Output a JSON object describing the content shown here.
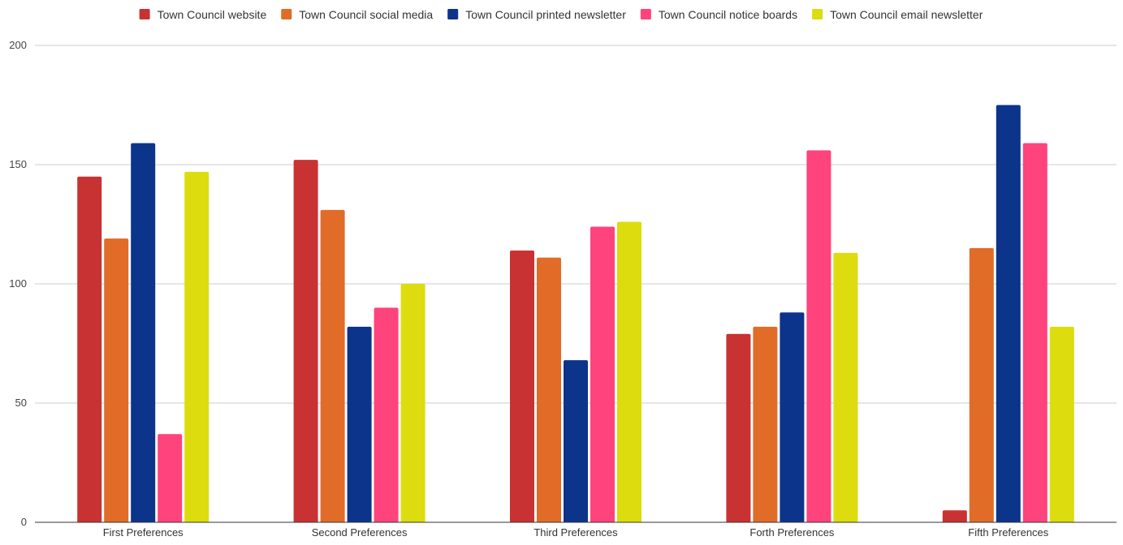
{
  "chart_data": {
    "type": "bar",
    "title": "",
    "xlabel": "",
    "ylabel": "",
    "categories": [
      "First Preferences",
      "Second Preferences",
      "Third Preferences",
      "Forth Preferences",
      "Fifth Preferences"
    ],
    "ylim": [
      0,
      200
    ],
    "yticks": [
      0,
      50,
      100,
      150,
      200
    ],
    "grid": true,
    "legend_position": "top-center",
    "series": [
      {
        "name": "Town Council website",
        "color": "#C83232",
        "values": [
          145,
          152,
          114,
          79,
          5
        ]
      },
      {
        "name": "Town Council social media",
        "color": "#E06C28",
        "values": [
          119,
          131,
          111,
          82,
          115
        ]
      },
      {
        "name": "Town Council printed newsletter",
        "color": "#0B348A",
        "values": [
          159,
          82,
          68,
          88,
          175
        ]
      },
      {
        "name": "Town Council notice boards",
        "color": "#FF437C",
        "values": [
          37,
          90,
          124,
          156,
          159
        ]
      },
      {
        "name": "Town Council email newsletter",
        "color": "#DDDC0E",
        "values": [
          147,
          100,
          126,
          113,
          82
        ]
      }
    ]
  }
}
